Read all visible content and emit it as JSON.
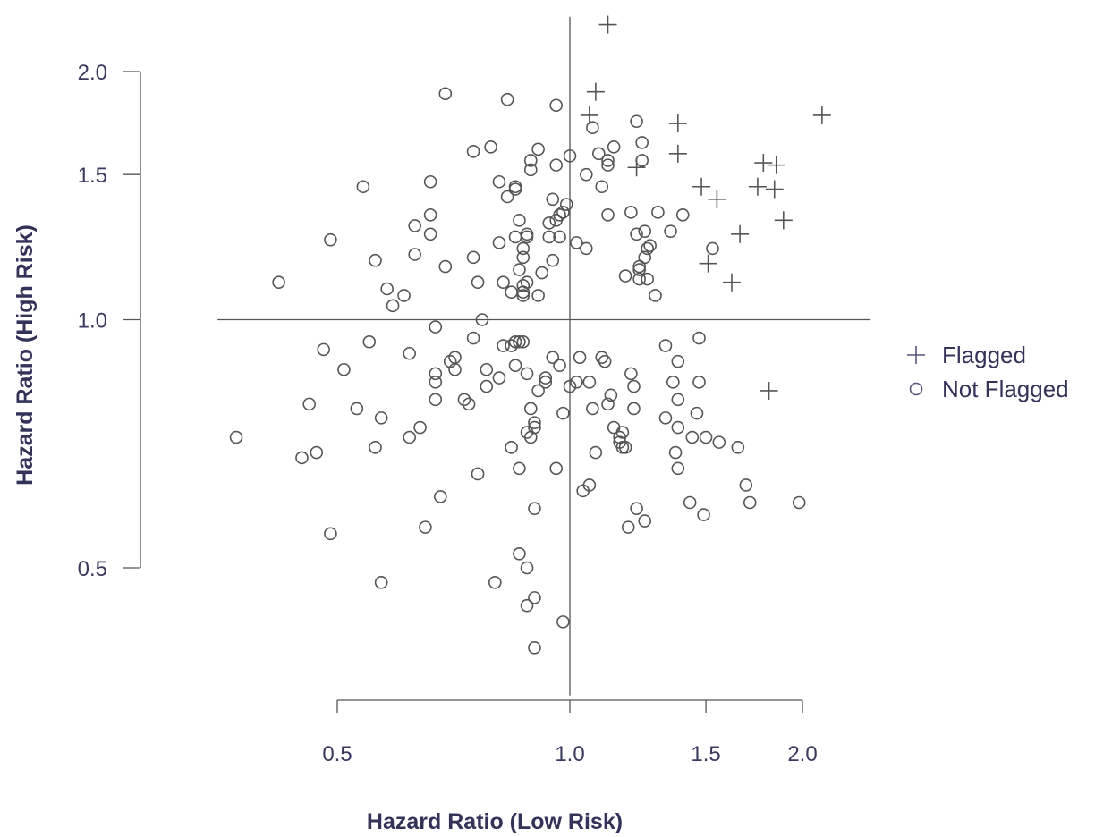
{
  "chart_data": {
    "type": "scatter",
    "xlabel": "Hazard Ratio (Low Risk)",
    "ylabel": "Hazard Ratio (High Risk)",
    "x_scale": "log",
    "y_scale": "log",
    "xlim": [
      0.35,
      2.45
    ],
    "ylim": [
      0.35,
      2.33
    ],
    "x_ticks": [
      0.5,
      1.0,
      1.5,
      2.0
    ],
    "x_tick_labels": [
      "0.5",
      "1.0",
      "1.5",
      "2.0"
    ],
    "y_ticks": [
      0.5,
      1.0,
      1.5,
      2.0
    ],
    "y_tick_labels": [
      "0.5",
      "1.0",
      "1.5",
      "2.0"
    ],
    "reference_lines": {
      "x": 1.0,
      "y": 1.0
    },
    "grid": false,
    "legend_position": "right",
    "colors": {
      "points": "#555555",
      "legend": "#55557a",
      "text": "#33335a"
    },
    "series": [
      {
        "name": "Flagged",
        "marker": "plus",
        "points": [
          [
            1.12,
            2.28
          ],
          [
            1.08,
            1.89
          ],
          [
            1.06,
            1.77
          ],
          [
            1.22,
            1.53
          ],
          [
            1.38,
            1.73
          ],
          [
            1.38,
            1.59
          ],
          [
            1.48,
            1.45
          ],
          [
            1.55,
            1.4
          ],
          [
            2.12,
            1.77
          ],
          [
            1.78,
            1.55
          ],
          [
            1.85,
            1.54
          ],
          [
            1.75,
            1.45
          ],
          [
            1.84,
            1.44
          ],
          [
            1.89,
            1.32
          ],
          [
            1.66,
            1.27
          ],
          [
            1.51,
            1.17
          ],
          [
            1.62,
            1.11
          ],
          [
            1.81,
            0.82
          ]
        ]
      },
      {
        "name": "Not Flagged",
        "marker": "circle",
        "points": [
          [
            0.37,
            0.72
          ],
          [
            0.45,
            0.68
          ],
          [
            0.47,
            0.69
          ],
          [
            0.49,
            0.55
          ],
          [
            0.46,
            0.79
          ],
          [
            0.48,
            0.92
          ],
          [
            0.49,
            1.25
          ],
          [
            0.42,
            1.11
          ],
          [
            0.53,
            0.78
          ],
          [
            0.51,
            0.87
          ],
          [
            0.54,
            1.45
          ],
          [
            0.55,
            0.94
          ],
          [
            0.56,
            0.7
          ],
          [
            0.57,
            0.76
          ],
          [
            0.57,
            0.48
          ],
          [
            0.56,
            1.18
          ],
          [
            0.58,
            1.09
          ],
          [
            0.59,
            1.04
          ],
          [
            0.61,
            1.07
          ],
          [
            0.62,
            0.72
          ],
          [
            0.62,
            0.91
          ],
          [
            0.63,
            1.2
          ],
          [
            0.63,
            1.3
          ],
          [
            0.64,
            0.74
          ],
          [
            0.65,
            0.56
          ],
          [
            0.66,
            1.47
          ],
          [
            0.66,
            1.34
          ],
          [
            0.67,
            0.98
          ],
          [
            0.67,
            0.84
          ],
          [
            0.67,
            0.86
          ],
          [
            0.67,
            0.8
          ],
          [
            0.68,
            0.61
          ],
          [
            0.69,
            1.16
          ],
          [
            0.7,
            0.89
          ],
          [
            0.71,
            0.9
          ],
          [
            0.69,
            1.88
          ],
          [
            0.71,
            0.87
          ],
          [
            0.73,
            0.8
          ],
          [
            0.74,
            0.79
          ],
          [
            0.75,
            1.6
          ],
          [
            0.75,
            1.19
          ],
          [
            0.75,
            0.95
          ],
          [
            0.76,
            1.11
          ],
          [
            0.76,
            0.65
          ],
          [
            0.77,
            1.0
          ],
          [
            0.78,
            0.87
          ],
          [
            0.78,
            0.83
          ],
          [
            0.79,
            1.62
          ],
          [
            0.8,
            0.48
          ],
          [
            0.81,
            1.47
          ],
          [
            0.81,
            1.24
          ],
          [
            0.81,
            0.85
          ],
          [
            0.82,
            1.11
          ],
          [
            0.82,
            0.93
          ],
          [
            0.83,
            1.41
          ],
          [
            0.83,
            1.85
          ],
          [
            0.84,
            0.7
          ],
          [
            0.84,
            1.08
          ],
          [
            0.84,
            0.93
          ],
          [
            0.85,
            0.94
          ],
          [
            0.85,
            0.88
          ],
          [
            0.85,
            1.26
          ],
          [
            0.85,
            1.45
          ],
          [
            0.85,
            1.44
          ],
          [
            0.86,
            1.32
          ],
          [
            0.86,
            0.94
          ],
          [
            0.86,
            0.66
          ],
          [
            0.86,
            0.52
          ],
          [
            0.86,
            1.15
          ],
          [
            0.87,
            1.19
          ],
          [
            0.87,
            1.22
          ],
          [
            0.87,
            1.1
          ],
          [
            0.87,
            1.07
          ],
          [
            0.87,
            0.94
          ],
          [
            0.88,
            1.27
          ],
          [
            0.88,
            1.26
          ],
          [
            0.88,
            1.11
          ],
          [
            0.88,
            0.86
          ],
          [
            0.88,
            0.73
          ],
          [
            0.88,
            0.5
          ],
          [
            0.89,
            0.78
          ],
          [
            0.89,
            0.72
          ],
          [
            0.88,
            0.45
          ],
          [
            0.89,
            1.52
          ],
          [
            0.89,
            1.56
          ],
          [
            0.9,
            0.75
          ],
          [
            0.9,
            0.74
          ],
          [
            0.9,
            0.59
          ],
          [
            0.9,
            0.46
          ],
          [
            0.9,
            0.4
          ],
          [
            0.91,
            1.61
          ],
          [
            0.91,
            0.82
          ],
          [
            0.91,
            1.07
          ],
          [
            0.92,
            1.14
          ],
          [
            0.93,
            0.84
          ],
          [
            0.93,
            0.85
          ],
          [
            0.94,
            1.31
          ],
          [
            0.94,
            1.26
          ],
          [
            0.95,
            1.18
          ],
          [
            0.95,
            1.4
          ],
          [
            0.95,
            0.9
          ],
          [
            0.96,
            0.66
          ],
          [
            0.96,
            1.54
          ],
          [
            0.96,
            1.32
          ],
          [
            0.96,
            1.82
          ],
          [
            0.97,
            1.34
          ],
          [
            0.97,
            0.88
          ],
          [
            0.97,
            1.26
          ],
          [
            0.98,
            1.35
          ],
          [
            0.98,
            0.77
          ],
          [
            0.98,
            0.43
          ],
          [
            0.99,
            1.38
          ],
          [
            1.0,
            0.83
          ],
          [
            1.0,
            1.58
          ],
          [
            1.02,
            0.84
          ],
          [
            1.02,
            1.24
          ],
          [
            1.03,
            0.9
          ],
          [
            1.04,
            0.62
          ],
          [
            1.05,
            1.5
          ],
          [
            1.05,
            1.22
          ],
          [
            1.06,
            0.63
          ],
          [
            1.06,
            0.84
          ],
          [
            1.07,
            0.78
          ],
          [
            1.07,
            1.71
          ],
          [
            1.08,
            0.69
          ],
          [
            1.09,
            1.59
          ],
          [
            1.1,
            0.9
          ],
          [
            1.1,
            1.45
          ],
          [
            1.11,
            0.89
          ],
          [
            1.12,
            0.79
          ],
          [
            1.12,
            1.56
          ],
          [
            1.12,
            1.54
          ],
          [
            1.12,
            1.34
          ],
          [
            1.13,
            0.81
          ],
          [
            1.14,
            0.74
          ],
          [
            1.14,
            1.62
          ],
          [
            1.16,
            0.72
          ],
          [
            1.16,
            0.71
          ],
          [
            1.17,
            0.73
          ],
          [
            1.17,
            0.7
          ],
          [
            1.18,
            0.7
          ],
          [
            1.18,
            1.13
          ],
          [
            1.19,
            0.56
          ],
          [
            1.2,
            1.35
          ],
          [
            1.2,
            0.86
          ],
          [
            1.21,
            0.78
          ],
          [
            1.21,
            0.83
          ],
          [
            1.22,
            1.74
          ],
          [
            1.22,
            0.59
          ],
          [
            1.22,
            1.27
          ],
          [
            1.23,
            1.16
          ],
          [
            1.23,
            1.15
          ],
          [
            1.23,
            1.12
          ],
          [
            1.24,
            1.56
          ],
          [
            1.24,
            1.64
          ],
          [
            1.25,
            1.28
          ],
          [
            1.25,
            0.57
          ],
          [
            1.25,
            1.19
          ],
          [
            1.26,
            1.22
          ],
          [
            1.26,
            1.12
          ],
          [
            1.27,
            1.23
          ],
          [
            1.29,
            1.07
          ],
          [
            1.3,
            1.35
          ],
          [
            1.33,
            0.76
          ],
          [
            1.33,
            0.93
          ],
          [
            1.35,
            1.28
          ],
          [
            1.36,
            0.84
          ],
          [
            1.37,
            0.69
          ],
          [
            1.38,
            0.74
          ],
          [
            1.38,
            0.8
          ],
          [
            1.38,
            0.89
          ],
          [
            1.38,
            0.66
          ],
          [
            1.4,
            1.34
          ],
          [
            1.43,
            0.6
          ],
          [
            1.44,
            0.72
          ],
          [
            1.46,
            0.77
          ],
          [
            1.47,
            0.84
          ],
          [
            1.47,
            0.95
          ],
          [
            1.49,
            0.58
          ],
          [
            1.5,
            0.72
          ],
          [
            1.53,
            1.22
          ],
          [
            1.56,
            0.71
          ],
          [
            1.65,
            0.7
          ],
          [
            1.69,
            0.63
          ],
          [
            1.71,
            0.6
          ],
          [
            1.98,
            0.6
          ],
          [
            0.66,
            1.27
          ],
          [
            0.87,
            1.08
          ]
        ]
      }
    ]
  },
  "legend": {
    "items": [
      {
        "label": "Flagged",
        "marker": "plus"
      },
      {
        "label": "Not Flagged",
        "marker": "circle"
      }
    ]
  }
}
